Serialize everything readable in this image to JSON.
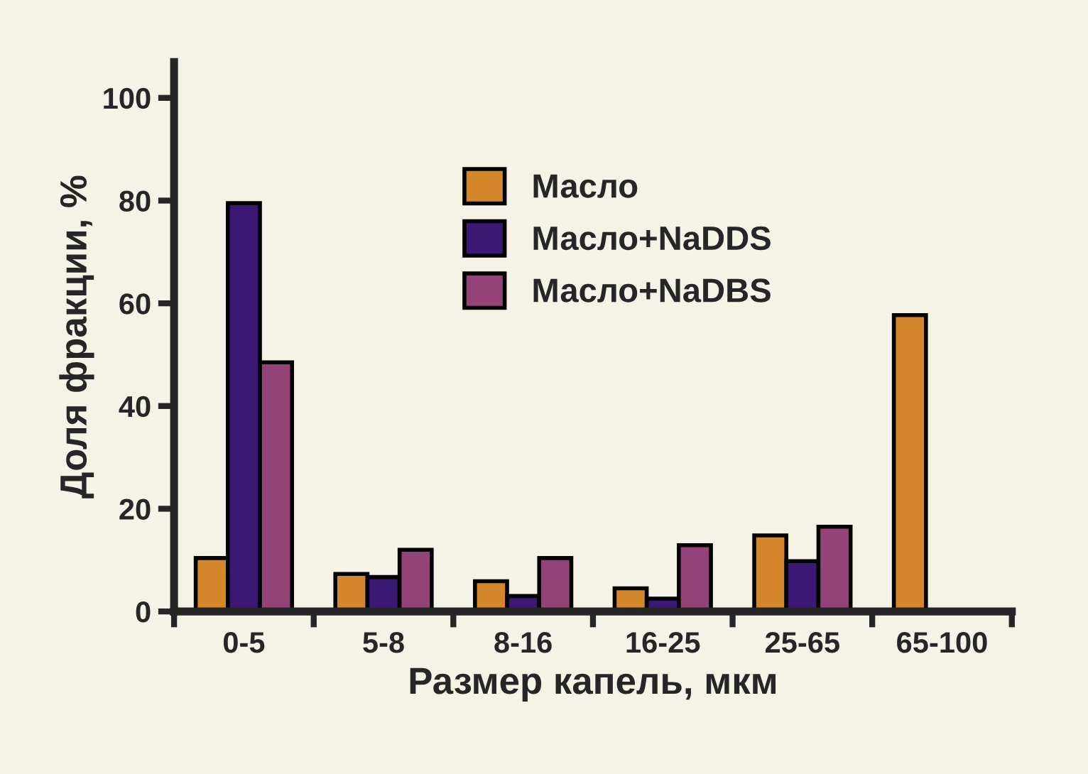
{
  "chart_data": {
    "type": "bar",
    "xlabel": "Размер капель, мкм",
    "ylabel": "Доля фракции, %",
    "categories": [
      "0-5",
      "5-8",
      "8-16",
      "16-25",
      "25-65",
      "65-100"
    ],
    "series": [
      {
        "name": "Масло",
        "color": "#d4862a",
        "values": [
          10.4,
          7.3,
          5.9,
          4.5,
          14.8,
          57.7
        ]
      },
      {
        "name": "Масло+NaDDS",
        "color": "#3b1874",
        "values": [
          79.5,
          6.7,
          3.0,
          2.5,
          9.8,
          null
        ]
      },
      {
        "name": "Масло+NaDBS",
        "color": "#934377",
        "values": [
          48.5,
          12.0,
          10.4,
          12.9,
          16.5,
          null
        ]
      }
    ],
    "ylim": [
      0,
      107
    ],
    "yticks": [
      0,
      20,
      40,
      60,
      80,
      100
    ],
    "grid": false,
    "legend": "top"
  }
}
